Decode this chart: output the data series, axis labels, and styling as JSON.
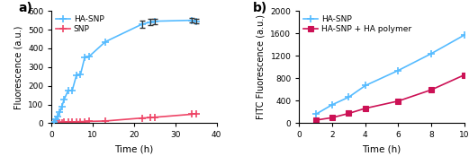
{
  "panel_a": {
    "title": "a)",
    "xlabel": "Time (h)",
    "ylabel": "Fluorescence (a.u.)",
    "xlim": [
      0,
      40
    ],
    "ylim": [
      0,
      600
    ],
    "yticks": [
      0,
      100,
      200,
      300,
      400,
      500,
      600
    ],
    "xticks": [
      0,
      10,
      20,
      30,
      40
    ],
    "ha_snp": {
      "x": [
        0.5,
        1,
        1.5,
        2,
        2.5,
        3,
        4,
        5,
        6,
        7,
        8,
        9,
        13,
        22,
        24,
        25,
        34,
        35
      ],
      "y": [
        5,
        20,
        35,
        60,
        90,
        125,
        175,
        175,
        255,
        260,
        350,
        355,
        435,
        530,
        540,
        545,
        550,
        545
      ],
      "yerr_idx": [
        13,
        14,
        15,
        16,
        17
      ],
      "yerr_vals": [
        18,
        18,
        15,
        12,
        12
      ],
      "color": "#55bbff",
      "label": "HA-SNP",
      "marker": "+"
    },
    "snp": {
      "x": [
        0.5,
        1,
        1.5,
        2,
        2.5,
        3,
        4,
        5,
        6,
        7,
        8,
        9,
        13,
        22,
        24,
        25,
        34,
        35
      ],
      "y": [
        1,
        2,
        2,
        3,
        4,
        5,
        6,
        7,
        8,
        9,
        9,
        10,
        12,
        28,
        30,
        32,
        48,
        52
      ],
      "color": "#ee4466",
      "label": "SNP",
      "marker": "+"
    }
  },
  "panel_b": {
    "title": "b)",
    "xlabel": "Time (h)",
    "ylabel": "FITC Fluorescence (a.u.)",
    "xlim": [
      0,
      10
    ],
    "ylim": [
      0,
      2000
    ],
    "yticks": [
      0,
      400,
      800,
      1200,
      1600,
      2000
    ],
    "xticks": [
      0,
      2,
      4,
      6,
      8,
      10
    ],
    "ha_snp": {
      "x": [
        1,
        2,
        3,
        4,
        6,
        8,
        10
      ],
      "y": [
        160,
        330,
        465,
        670,
        940,
        1240,
        1570
      ],
      "color": "#55bbff",
      "label": "HA-SNP",
      "marker": "+"
    },
    "ha_snp_ha": {
      "x": [
        1,
        2,
        3,
        4,
        6,
        8,
        10
      ],
      "y": [
        55,
        100,
        175,
        265,
        395,
        595,
        860
      ],
      "color": "#cc1155",
      "label": "HA-SNP + HA polymer",
      "marker": "s"
    }
  }
}
